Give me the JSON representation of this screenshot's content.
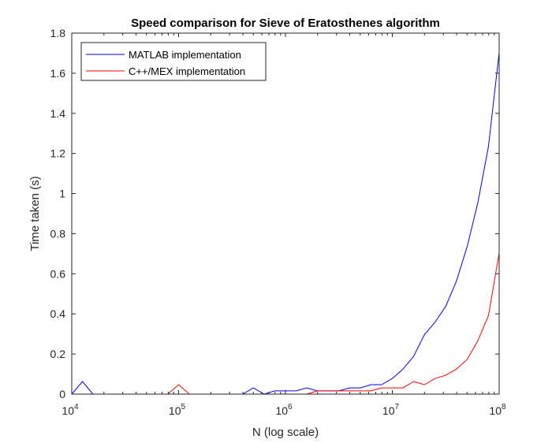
{
  "chart_data": {
    "type": "line",
    "title": "Speed comparison for Sieve of Eratosthenes algorithm",
    "xlabel": "N (log scale)",
    "ylabel": "Time taken (s)",
    "xscale": "log",
    "xlim": [
      10000,
      100000000
    ],
    "ylim": [
      0,
      1.8
    ],
    "grid": false,
    "legend_position": "top-left",
    "x_ticks": [
      {
        "base": "10",
        "exp": "4"
      },
      {
        "base": "10",
        "exp": "5"
      },
      {
        "base": "10",
        "exp": "6"
      },
      {
        "base": "10",
        "exp": "7"
      },
      {
        "base": "10",
        "exp": "8"
      }
    ],
    "y_ticks": [
      "0",
      "0.2",
      "0.4",
      "0.6",
      "0.8",
      "1",
      "1.2",
      "1.4",
      "1.6",
      "1.8"
    ],
    "x": [
      10000,
      12600,
      15800,
      20000,
      25100,
      31600,
      39800,
      50100,
      63100,
      79400,
      100000,
      126000,
      158000,
      200000,
      251000,
      316000,
      398000,
      501000,
      631000,
      794000,
      1000000,
      1260000,
      1580000,
      2000000,
      2510000,
      3160000,
      3980000,
      5010000,
      6310000,
      7940000,
      10000000,
      12600000,
      15800000,
      20000000,
      25100000,
      31600000,
      39800000,
      50100000,
      63100000,
      79400000,
      100000000
    ],
    "series": [
      {
        "name": "MATLAB implementation",
        "color": "#0000ff",
        "values": [
          0,
          0.063,
          0,
          0,
          0,
          0,
          0,
          0,
          0,
          0,
          0,
          0,
          0,
          0,
          0,
          0,
          0,
          0.031,
          0,
          0.016,
          0.016,
          0.016,
          0.031,
          0.016,
          0.016,
          0.016,
          0.031,
          0.031,
          0.047,
          0.047,
          0.078,
          0.125,
          0.188,
          0.297,
          0.359,
          0.438,
          0.563,
          0.734,
          0.953,
          1.234,
          1.703
        ]
      },
      {
        "name": "C++/MEX implementation",
        "color": "#ff0000",
        "values": [
          0,
          0,
          0,
          0,
          0,
          0,
          0,
          0,
          0,
          0,
          0.047,
          0,
          0,
          0,
          0,
          0,
          0,
          0,
          0,
          0,
          0,
          0,
          0,
          0.016,
          0.016,
          0.016,
          0.016,
          0.016,
          0.016,
          0.031,
          0.031,
          0.031,
          0.063,
          0.047,
          0.078,
          0.094,
          0.125,
          0.172,
          0.266,
          0.391,
          0.703
        ]
      }
    ]
  }
}
